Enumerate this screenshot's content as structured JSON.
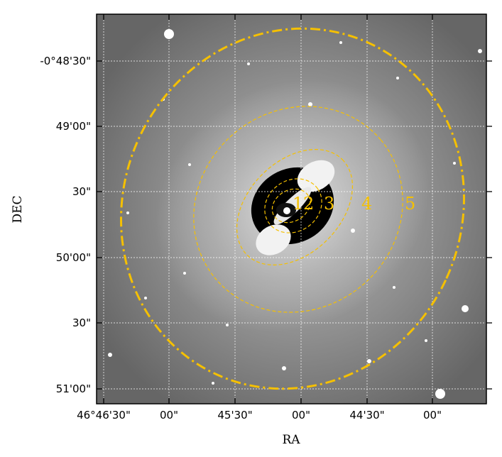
{
  "figure": {
    "xlabel": "RA",
    "ylabel": "DEC",
    "x_ticks": [
      "46°46'30\"",
      "00\"",
      "45'30\"",
      "00\"",
      "44'30\"",
      "00\""
    ],
    "y_ticks": [
      "-0°48'30\"",
      "49'00\"",
      "30\"",
      "50'00\"",
      "30\"",
      "51'00\""
    ],
    "ring_labels": [
      "1",
      "2",
      "3",
      "4",
      "5"
    ],
    "grid": true,
    "colors": {
      "contour": "#f5c000",
      "grid": "#ffffff",
      "frame": "#000000"
    }
  }
}
